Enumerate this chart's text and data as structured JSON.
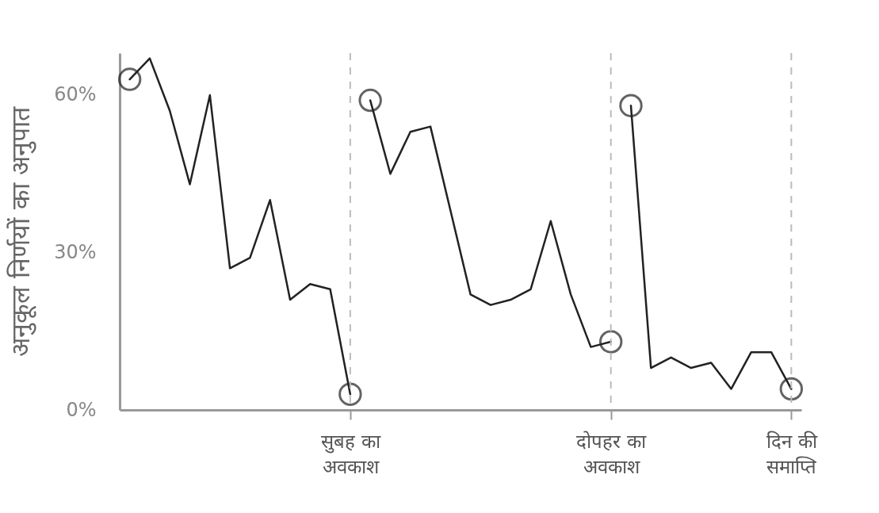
{
  "chart_data": {
    "type": "line",
    "ylabel": "अनुकूल निर्णयों का अनुपात",
    "ylim": [
      0,
      68
    ],
    "yticks": [
      {
        "value": 0,
        "label": "0%"
      },
      {
        "value": 30,
        "label": "30%"
      },
      {
        "value": 60,
        "label": "60%"
      }
    ],
    "categories": [
      null,
      null,
      null,
      null,
      null,
      null,
      null,
      null,
      null,
      null,
      null,
      "सुबह का\nअवकाश",
      null,
      null,
      null,
      null,
      null,
      null,
      null,
      null,
      null,
      null,
      null,
      null,
      "दोपहर का\nअवकाश",
      null,
      null,
      null,
      null,
      null,
      null,
      null,
      null,
      "दिन की\nसमाप्ति"
    ],
    "ref_lines": [
      {
        "axis": "x",
        "value": "सुबह का\nअवकाश",
        "color": "#bbbbbb",
        "line_style": "dashed"
      },
      {
        "axis": "x",
        "value": "दोपहर का\nअवकाश",
        "color": "#bbbbbb",
        "line_style": "dashed"
      },
      {
        "axis": "x",
        "value": "दिन की\nसमाप्ति",
        "color": "#bbbbbb",
        "line_style": "dashed"
      }
    ],
    "line_style": "solid",
    "series": [
      {
        "color": "#222222",
        "values": [
          63,
          67,
          57,
          43,
          60,
          27,
          29,
          40,
          21,
          24,
          23,
          3,
          null,
          null,
          null,
          null,
          null,
          null,
          null,
          null,
          null,
          null,
          null,
          null,
          null,
          null,
          null,
          null,
          null,
          null,
          null,
          null,
          null,
          null
        ]
      },
      {
        "color": "#222222",
        "values": [
          null,
          null,
          null,
          null,
          null,
          null,
          null,
          null,
          null,
          null,
          null,
          null,
          59,
          45,
          53,
          54,
          38,
          22,
          20,
          21,
          23,
          36,
          22,
          12,
          13,
          null,
          null,
          null,
          null,
          null,
          null,
          null,
          null,
          null
        ]
      },
      {
        "color": "#222222",
        "values": [
          null,
          null,
          null,
          null,
          null,
          null,
          null,
          null,
          null,
          null,
          null,
          null,
          null,
          null,
          null,
          null,
          null,
          null,
          null,
          null,
          null,
          null,
          null,
          null,
          null,
          58,
          8,
          10,
          8,
          9,
          4,
          11,
          11,
          4
        ]
      },
      {
        "type": "scatter",
        "marker": "circle",
        "color": "#222222",
        "values": [
          63,
          null,
          null,
          null,
          null,
          null,
          null,
          null,
          null,
          null,
          null,
          3,
          59,
          null,
          null,
          null,
          null,
          null,
          null,
          null,
          null,
          null,
          null,
          null,
          13,
          58,
          null,
          null,
          null,
          null,
          null,
          null,
          null,
          4
        ]
      }
    ]
  }
}
